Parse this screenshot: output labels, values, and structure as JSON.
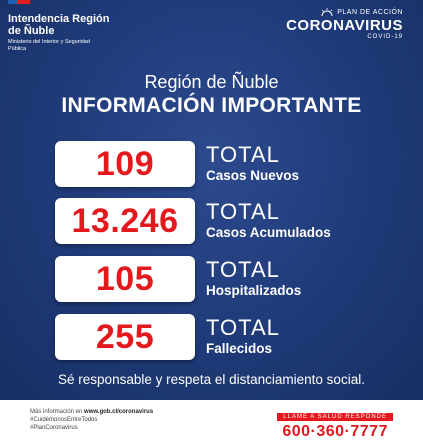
{
  "header": {
    "org_title": "Intendencia Región de Ñuble",
    "org_subtitle": "Ministerio del Interior y Seguridad Pública",
    "plan_top": "PLAN DE ACCIÓN",
    "plan_main": "CORONAVIRUS",
    "plan_sub": "COVID-19"
  },
  "region": "Región de Ñuble",
  "headline": "INFORMACIÓN IMPORTANTE",
  "stats": [
    {
      "value": "109",
      "total": "TOTAL",
      "label": "Casos Nuevos"
    },
    {
      "value": "13.246",
      "total": "TOTAL",
      "label": "Casos Acumulados"
    },
    {
      "value": "105",
      "total": "TOTAL",
      "label": "Hospitalizados"
    },
    {
      "value": "255",
      "total": "TOTAL",
      "label": "Fallecidos"
    }
  ],
  "slogan": "Sé responsable y respeta el distanciamiento social.",
  "footer": {
    "more_info_prefix": "Más información en ",
    "url": "www.gob.cl/coronavirus",
    "hashtag1": "#CuidémonosEntreTodos",
    "hashtag2": "#PlanCoronavirus",
    "call_label": "LLAME A SALUD RESPONDE",
    "phone": "600·360·7777"
  },
  "colors": {
    "background": "#1f3a78",
    "accent_red": "#e3191e",
    "flag_blue": "#1e5fb3"
  }
}
